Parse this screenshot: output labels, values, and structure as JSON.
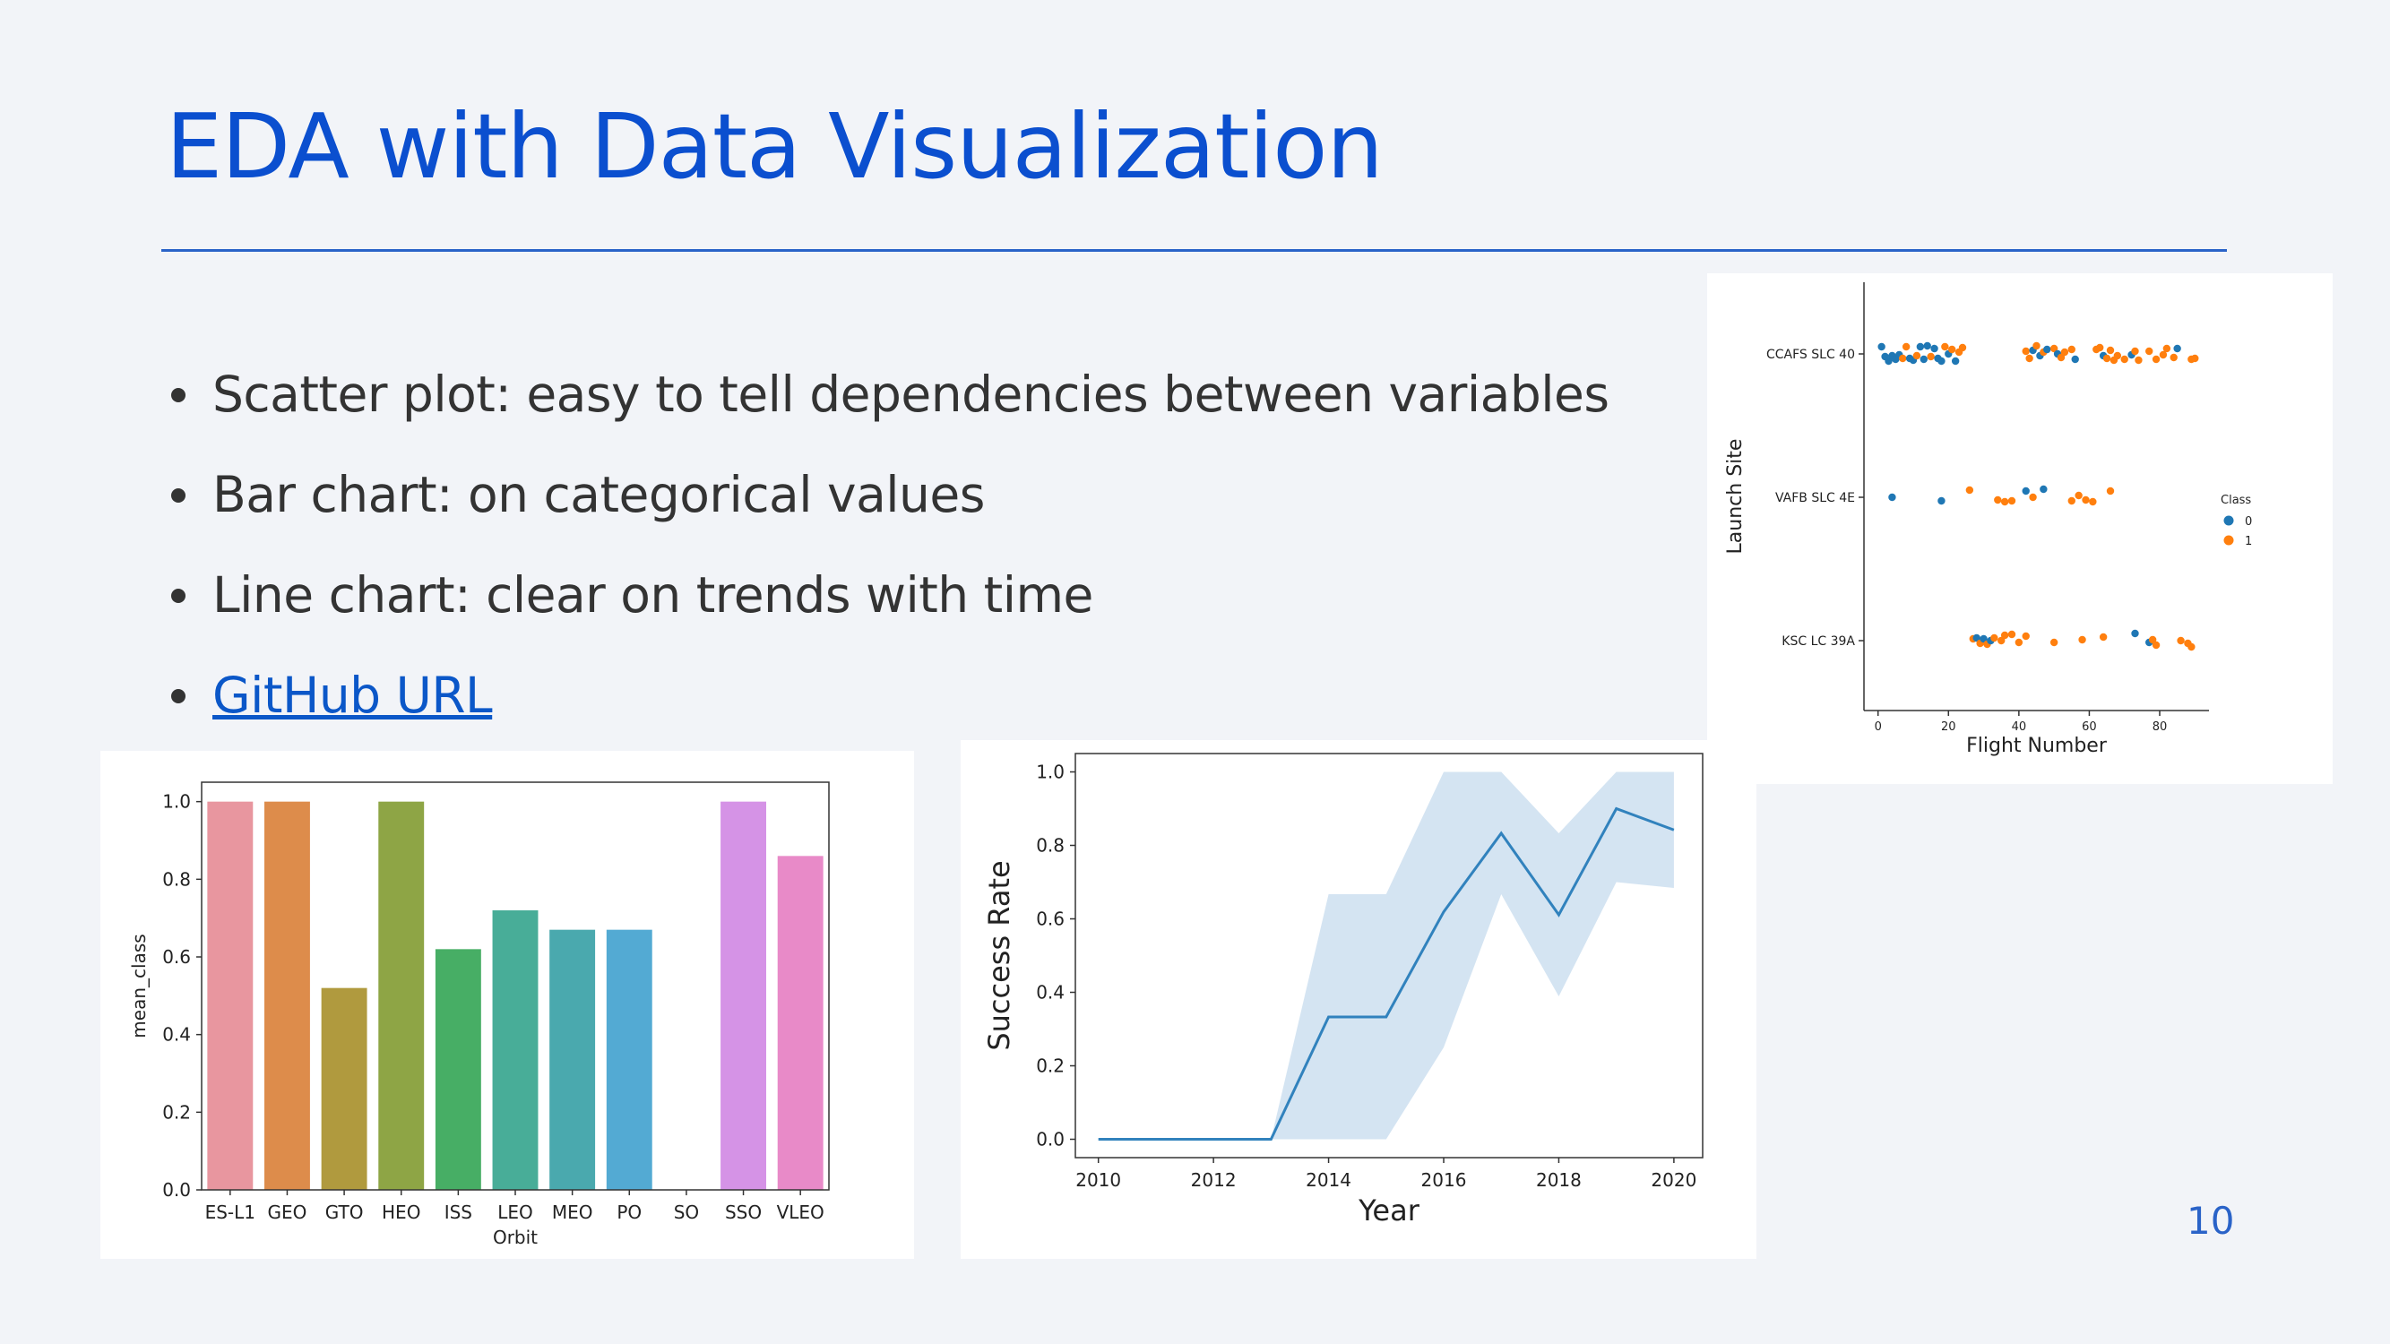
{
  "slide": {
    "title": "EDA with Data Visualization",
    "page_number": "10",
    "bullets": [
      {
        "text": "Scatter plot: easy to tell dependencies between variables",
        "link": false
      },
      {
        "text": "Bar chart: on categorical values",
        "link": false
      },
      {
        "text": "Line chart: clear on trends with time",
        "link": false
      },
      {
        "text": "GitHub URL",
        "link": true
      }
    ]
  },
  "chart_data": [
    {
      "type": "bar",
      "categories": [
        "ES-L1",
        "GEO",
        "GTO",
        "HEO",
        "ISS",
        "LEO",
        "MEO",
        "PO",
        "SO",
        "SSO",
        "VLEO"
      ],
      "values": [
        1.0,
        1.0,
        0.52,
        1.0,
        0.62,
        0.72,
        0.67,
        0.67,
        0.0,
        1.0,
        0.86
      ],
      "colors": [
        "#e8969f",
        "#dd8c4b",
        "#b09a3e",
        "#8ea545",
        "#47ae65",
        "#48ad98",
        "#4aa9ae",
        "#53aad3",
        "#9aa3e8",
        "#d593e6",
        "#e88ac8"
      ],
      "title": "",
      "xlabel": "Orbit",
      "ylabel": "mean_class",
      "ylim": [
        0,
        1.05
      ],
      "yticks": [
        "0.0",
        "0.2",
        "0.4",
        "0.6",
        "0.8",
        "1.0"
      ],
      "grid": false
    },
    {
      "type": "line",
      "x": [
        2010,
        2012,
        2013,
        2014,
        2015,
        2016,
        2017,
        2018,
        2019,
        2020
      ],
      "series": [
        {
          "values": [
            0.0,
            0.0,
            0.0,
            0.333,
            0.333,
            0.619,
            0.833,
            0.611,
            0.9,
            0.842
          ]
        }
      ],
      "band_upper": [
        0.0,
        0.0,
        0.0,
        0.667,
        0.667,
        1.0,
        1.0,
        0.833,
        1.0,
        1.0
      ],
      "band_lower": [
        0.0,
        0.0,
        0.0,
        0.0,
        0.0,
        0.25,
        0.667,
        0.389,
        0.7,
        0.684
      ],
      "line_color": "#3182bd",
      "band_color": "#a9c9e6",
      "title": "",
      "xlabel": "Year",
      "ylabel": "Success Rate",
      "xlim": [
        2009.6,
        2020.5
      ],
      "ylim": [
        -0.05,
        1.05
      ],
      "xticks": [
        "2010",
        "2012",
        "2014",
        "2016",
        "2018",
        "2020"
      ],
      "yticks": [
        "0.0",
        "0.2",
        "0.4",
        "0.6",
        "0.8",
        "1.0"
      ],
      "grid": false
    },
    {
      "type": "scatter",
      "xlabel": "Flight Number",
      "ylabel": "Launch Site",
      "categories": [
        "CCAFS SLC 40",
        "VAFB SLC 4E",
        "KSC LC 39A"
      ],
      "xlim": [
        -4,
        94
      ],
      "xticks": [
        "0",
        "20",
        "40",
        "60",
        "80"
      ],
      "legend": {
        "title": "Class",
        "placement": "right",
        "entries": [
          {
            "label": "0",
            "color": "#1f77b4"
          },
          {
            "label": "1",
            "color": "#ff7f0e"
          }
        ]
      },
      "grid": false,
      "points": [
        {
          "x": 1,
          "site": 0,
          "c": 0,
          "j": -0.08
        },
        {
          "x": 2,
          "site": 0,
          "c": 0,
          "j": 0.03
        },
        {
          "x": 3,
          "site": 0,
          "c": 0,
          "j": 0.08
        },
        {
          "x": 4,
          "site": 0,
          "c": 0,
          "j": 0.02
        },
        {
          "x": 5,
          "site": 0,
          "c": 0,
          "j": 0.06
        },
        {
          "x": 6,
          "site": 0,
          "c": 0,
          "j": 0.01
        },
        {
          "x": 7,
          "site": 0,
          "c": 1,
          "j": 0.05
        },
        {
          "x": 8,
          "site": 0,
          "c": 1,
          "j": -0.08
        },
        {
          "x": 9,
          "site": 0,
          "c": 0,
          "j": 0.05
        },
        {
          "x": 10,
          "site": 0,
          "c": 0,
          "j": 0.07
        },
        {
          "x": 11,
          "site": 0,
          "c": 1,
          "j": 0.02
        },
        {
          "x": 12,
          "site": 0,
          "c": 0,
          "j": -0.08
        },
        {
          "x": 13,
          "site": 0,
          "c": 0,
          "j": 0.06
        },
        {
          "x": 14,
          "site": 0,
          "c": 0,
          "j": -0.09
        },
        {
          "x": 15,
          "site": 0,
          "c": 1,
          "j": 0.03
        },
        {
          "x": 16,
          "site": 0,
          "c": 0,
          "j": -0.06
        },
        {
          "x": 17,
          "site": 0,
          "c": 0,
          "j": 0.05
        },
        {
          "x": 18,
          "site": 0,
          "c": 0,
          "j": 0.08
        },
        {
          "x": 19,
          "site": 0,
          "c": 1,
          "j": -0.08
        },
        {
          "x": 20,
          "site": 0,
          "c": 0,
          "j": 0.0
        },
        {
          "x": 21,
          "site": 0,
          "c": 1,
          "j": -0.05
        },
        {
          "x": 22,
          "site": 0,
          "c": 0,
          "j": 0.08
        },
        {
          "x": 23,
          "site": 0,
          "c": 1,
          "j": -0.02
        },
        {
          "x": 24,
          "site": 0,
          "c": 1,
          "j": -0.07
        },
        {
          "x": 42,
          "site": 0,
          "c": 1,
          "j": -0.03
        },
        {
          "x": 43,
          "site": 0,
          "c": 1,
          "j": 0.05
        },
        {
          "x": 44,
          "site": 0,
          "c": 0,
          "j": -0.04
        },
        {
          "x": 45,
          "site": 0,
          "c": 1,
          "j": -0.09
        },
        {
          "x": 46,
          "site": 0,
          "c": 0,
          "j": 0.02
        },
        {
          "x": 47,
          "site": 0,
          "c": 1,
          "j": -0.02
        },
        {
          "x": 48,
          "site": 0,
          "c": 0,
          "j": -0.05
        },
        {
          "x": 50,
          "site": 0,
          "c": 1,
          "j": -0.06
        },
        {
          "x": 51,
          "site": 0,
          "c": 0,
          "j": 0.0
        },
        {
          "x": 52,
          "site": 0,
          "c": 1,
          "j": 0.04
        },
        {
          "x": 53,
          "site": 0,
          "c": 1,
          "j": -0.02
        },
        {
          "x": 55,
          "site": 0,
          "c": 1,
          "j": -0.05
        },
        {
          "x": 56,
          "site": 0,
          "c": 0,
          "j": 0.06
        },
        {
          "x": 62,
          "site": 0,
          "c": 1,
          "j": -0.05
        },
        {
          "x": 63,
          "site": 0,
          "c": 1,
          "j": -0.07
        },
        {
          "x": 64,
          "site": 0,
          "c": 0,
          "j": 0.02
        },
        {
          "x": 65,
          "site": 0,
          "c": 1,
          "j": 0.05
        },
        {
          "x": 66,
          "site": 0,
          "c": 1,
          "j": -0.04
        },
        {
          "x": 67,
          "site": 0,
          "c": 1,
          "j": 0.07
        },
        {
          "x": 68,
          "site": 0,
          "c": 1,
          "j": 0.02
        },
        {
          "x": 70,
          "site": 0,
          "c": 1,
          "j": 0.06
        },
        {
          "x": 72,
          "site": 0,
          "c": 0,
          "j": 0.01
        },
        {
          "x": 73,
          "site": 0,
          "c": 1,
          "j": -0.03
        },
        {
          "x": 74,
          "site": 0,
          "c": 1,
          "j": 0.07
        },
        {
          "x": 77,
          "site": 0,
          "c": 1,
          "j": -0.03
        },
        {
          "x": 79,
          "site": 0,
          "c": 1,
          "j": 0.06
        },
        {
          "x": 81,
          "site": 0,
          "c": 1,
          "j": 0.01
        },
        {
          "x": 82,
          "site": 0,
          "c": 1,
          "j": -0.06
        },
        {
          "x": 84,
          "site": 0,
          "c": 1,
          "j": 0.04
        },
        {
          "x": 85,
          "site": 0,
          "c": 0,
          "j": -0.06
        },
        {
          "x": 89,
          "site": 0,
          "c": 1,
          "j": 0.06
        },
        {
          "x": 90,
          "site": 0,
          "c": 1,
          "j": 0.05
        },
        {
          "x": 4,
          "site": 1,
          "c": 0,
          "j": 0.0
        },
        {
          "x": 18,
          "site": 1,
          "c": 0,
          "j": 0.04
        },
        {
          "x": 26,
          "site": 1,
          "c": 1,
          "j": -0.08
        },
        {
          "x": 34,
          "site": 1,
          "c": 1,
          "j": 0.03
        },
        {
          "x": 36,
          "site": 1,
          "c": 1,
          "j": 0.05
        },
        {
          "x": 38,
          "site": 1,
          "c": 1,
          "j": 0.04
        },
        {
          "x": 42,
          "site": 1,
          "c": 0,
          "j": -0.07
        },
        {
          "x": 44,
          "site": 1,
          "c": 1,
          "j": 0.0
        },
        {
          "x": 47,
          "site": 1,
          "c": 0,
          "j": -0.09
        },
        {
          "x": 55,
          "site": 1,
          "c": 1,
          "j": 0.04
        },
        {
          "x": 57,
          "site": 1,
          "c": 1,
          "j": -0.02
        },
        {
          "x": 59,
          "site": 1,
          "c": 1,
          "j": 0.03
        },
        {
          "x": 61,
          "site": 1,
          "c": 1,
          "j": 0.05
        },
        {
          "x": 66,
          "site": 1,
          "c": 1,
          "j": -0.07
        },
        {
          "x": 27,
          "site": 2,
          "c": 1,
          "j": -0.02
        },
        {
          "x": 28,
          "site": 2,
          "c": 0,
          "j": -0.03
        },
        {
          "x": 29,
          "site": 2,
          "c": 1,
          "j": 0.03
        },
        {
          "x": 30,
          "site": 2,
          "c": 0,
          "j": -0.02
        },
        {
          "x": 31,
          "site": 2,
          "c": 1,
          "j": 0.04
        },
        {
          "x": 32,
          "site": 2,
          "c": 0,
          "j": 0.0
        },
        {
          "x": 33,
          "site": 2,
          "c": 1,
          "j": -0.03
        },
        {
          "x": 35,
          "site": 2,
          "c": 1,
          "j": 0.0
        },
        {
          "x": 36,
          "site": 2,
          "c": 1,
          "j": -0.06
        },
        {
          "x": 38,
          "site": 2,
          "c": 1,
          "j": -0.07
        },
        {
          "x": 40,
          "site": 2,
          "c": 1,
          "j": 0.02
        },
        {
          "x": 42,
          "site": 2,
          "c": 1,
          "j": -0.05
        },
        {
          "x": 50,
          "site": 2,
          "c": 1,
          "j": 0.02
        },
        {
          "x": 58,
          "site": 2,
          "c": 1,
          "j": -0.01
        },
        {
          "x": 64,
          "site": 2,
          "c": 1,
          "j": -0.04
        },
        {
          "x": 73,
          "site": 2,
          "c": 0,
          "j": -0.08
        },
        {
          "x": 77,
          "site": 2,
          "c": 0,
          "j": 0.02
        },
        {
          "x": 78,
          "site": 2,
          "c": 1,
          "j": -0.01
        },
        {
          "x": 79,
          "site": 2,
          "c": 1,
          "j": 0.05
        },
        {
          "x": 86,
          "site": 2,
          "c": 1,
          "j": 0.0
        },
        {
          "x": 88,
          "site": 2,
          "c": 1,
          "j": 0.03
        },
        {
          "x": 89,
          "site": 2,
          "c": 1,
          "j": 0.07
        }
      ]
    }
  ]
}
